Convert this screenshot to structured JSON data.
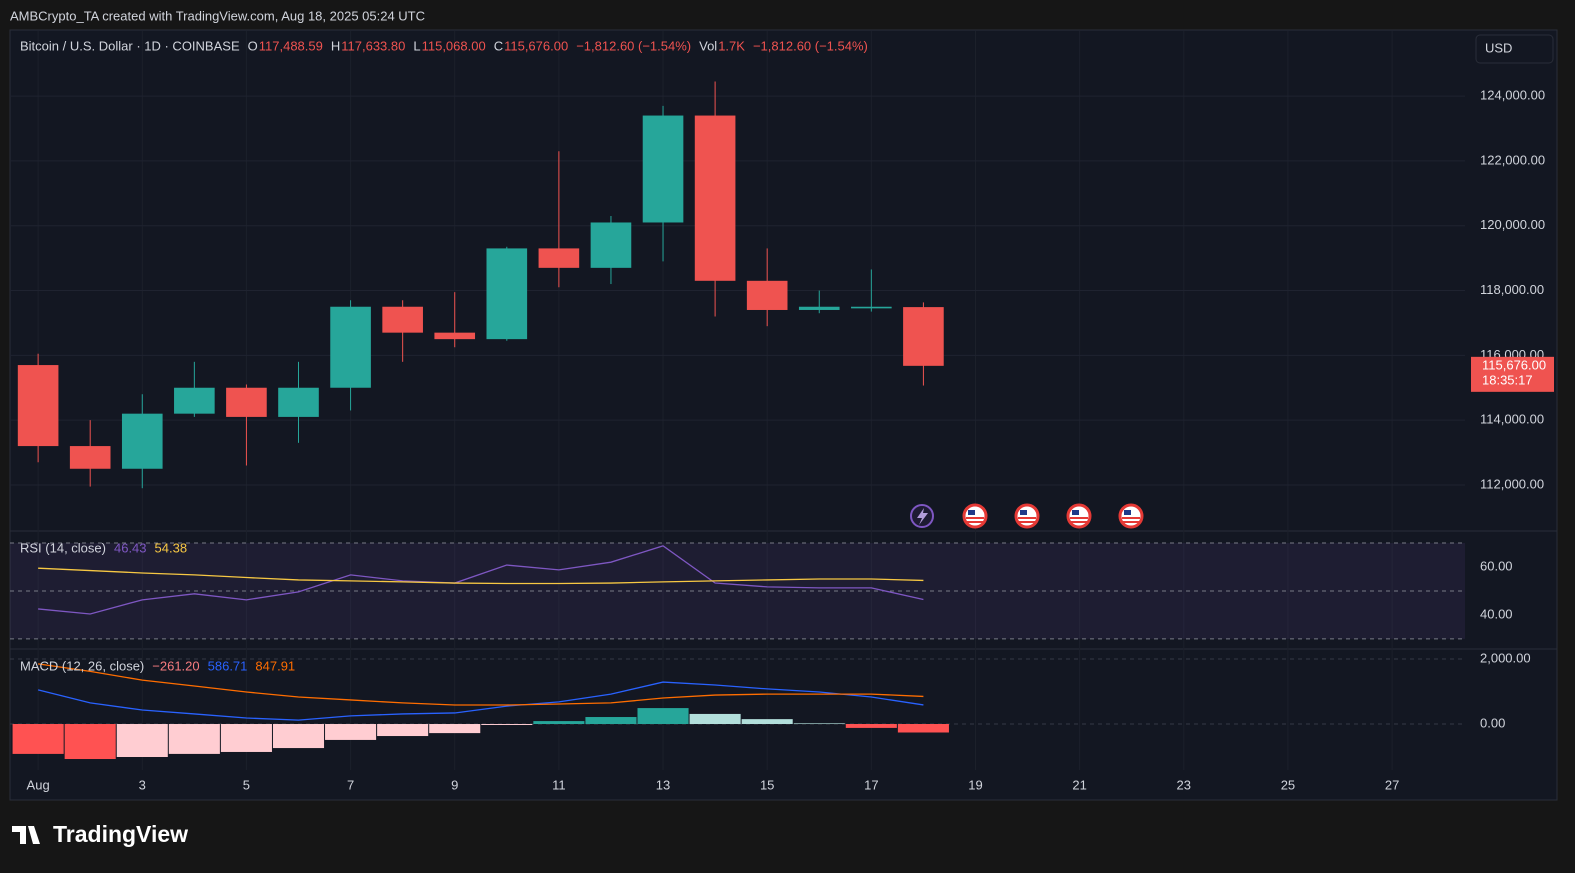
{
  "header": {
    "text": "AMBCrypto_TA created with TradingView.com, Aug 18, 2025 05:24 UTC"
  },
  "footer": {
    "brand": "TradingView"
  },
  "chart_data": [
    {
      "type": "candlestick",
      "symbol": "Bitcoin / U.S. Dollar · 1D · COINBASE",
      "legend": [
        {
          "key": "O",
          "value": "117,488.59"
        },
        {
          "key": "H",
          "value": "117,633.80"
        },
        {
          "key": "L",
          "value": "115,068.00"
        },
        {
          "key": "C",
          "value": "115,676.00"
        },
        {
          "value": "−1,812.60 (−1.54%)"
        },
        {
          "key": "Vol",
          "value": "1.7K"
        },
        {
          "value": "−1,812.60 (−1.54%)"
        }
      ],
      "legend_value_color": "#ef5350",
      "currency": "USD",
      "last_price_label": "115,676.00",
      "countdown": "18:35:17",
      "up_color": "#26a69a",
      "down_color": "#ef5350",
      "x": [
        1,
        2,
        3,
        4,
        5,
        6,
        7,
        8,
        9,
        10,
        11,
        12,
        13,
        14,
        15,
        16,
        17,
        18
      ],
      "open": [
        115700,
        113200,
        112500,
        114200,
        115000,
        114100,
        115000,
        117500,
        116700,
        116500,
        119300,
        118700,
        120100,
        123400,
        118300,
        117400,
        117450,
        117488.59
      ],
      "high": [
        116050,
        114000,
        114800,
        115800,
        115100,
        115800,
        117700,
        117700,
        117950,
        119350,
        122300,
        120300,
        123700,
        124450,
        119300,
        118000,
        118650,
        117633.8
      ],
      "low": [
        112700,
        111950,
        111900,
        114100,
        112600,
        113300,
        114300,
        115800,
        116250,
        116450,
        118100,
        118200,
        118900,
        117200,
        116900,
        117300,
        117350,
        115068
      ],
      "close": [
        113200,
        112500,
        114200,
        115000,
        114100,
        115000,
        117500,
        116700,
        116500,
        119300,
        118700,
        120100,
        123400,
        118300,
        117400,
        117500,
        117500,
        115676
      ],
      "xlim": [
        0.46,
        28.4
      ],
      "xticks": [
        {
          "value": 1,
          "label": "Aug"
        },
        3,
        5,
        7,
        9,
        11,
        13,
        15,
        17,
        19,
        21,
        23,
        25,
        27
      ],
      "ylim": [
        110610,
        126040
      ],
      "yticks": [
        {
          "value": 112000,
          "label": "112,000.00"
        },
        {
          "value": 114000,
          "label": "114,000.00"
        },
        {
          "value": 116000,
          "label": "116,000.00"
        },
        {
          "value": 118000,
          "label": "118,000.00"
        },
        {
          "value": 120000,
          "label": "120,000.00"
        },
        {
          "value": 122000,
          "label": "122,000.00"
        },
        {
          "value": 124000,
          "label": "124,000.00"
        }
      ],
      "grid": true
    },
    {
      "type": "line",
      "title": "RSI (14, close)",
      "legend": [
        {
          "text": "46.43",
          "color": "#7e57c2"
        },
        {
          "text": "54.38",
          "color": "#f7c843"
        }
      ],
      "x": [
        1,
        2,
        3,
        4,
        5,
        6,
        7,
        8,
        9,
        10,
        11,
        12,
        13,
        14,
        15,
        16,
        17,
        18
      ],
      "series": [
        {
          "color": "#7e57c2",
          "values": [
            42.5,
            40.4,
            46.3,
            48.8,
            46.3,
            49.6,
            56.7,
            54.2,
            53.3,
            60.8,
            58.8,
            62,
            68.8,
            53.3,
            51.7,
            51.3,
            51.3,
            46.43
          ]
        },
        {
          "color": "#f7c843",
          "values": [
            59.5,
            58.5,
            57.5,
            56.7,
            55.6,
            54.6,
            54.2,
            53.8,
            53.3,
            53.1,
            53.1,
            53.3,
            53.8,
            54.2,
            54.6,
            55,
            55,
            54.38
          ]
        }
      ],
      "band": [
        30,
        70
      ],
      "midline": 50,
      "xlim": [
        0.46,
        28.4
      ],
      "ylim": [
        25.8,
        75
      ],
      "yticks": [
        {
          "value": 40,
          "label": "40.00"
        },
        {
          "value": 60,
          "label": "60.00"
        }
      ],
      "grid": false
    },
    {
      "type": "macd",
      "title": "MACD (12, 26, close)",
      "legend": [
        {
          "text": "−261.20",
          "color": "#f77c80"
        },
        {
          "text": "586.71",
          "color": "#2962ff"
        },
        {
          "text": "847.91",
          "color": "#ff6d00"
        }
      ],
      "x": [
        1,
        2,
        3,
        4,
        5,
        6,
        7,
        8,
        9,
        10,
        11,
        12,
        13,
        14,
        15,
        16,
        17,
        18
      ],
      "histogram": {
        "values": [
          -920,
          -1077,
          -1015,
          -920,
          -860,
          -740,
          -490,
          -370,
          -280,
          -30,
          90,
          215,
          490,
          310,
          150,
          20,
          -120,
          -261.2
        ],
        "colors": [
          "#ff5252",
          "#ff5252",
          "#ffcdd2",
          "#ffcdd2",
          "#ffcdd2",
          "#ffcdd2",
          "#ffcdd2",
          "#ffcdd2",
          "#ffcdd2",
          "#ffcdd2",
          "#26a69a",
          "#26a69a",
          "#26a69a",
          "#b2dfdb",
          "#b2dfdb",
          "#b2dfdb",
          "#ff5252",
          "#ff5252"
        ]
      },
      "series": [
        {
          "color": "#2962ff",
          "values": [
            1050,
            650,
            430,
            310,
            185,
            120,
            250,
            310,
            340,
            550,
            680,
            920,
            1290,
            1200,
            1080,
            985,
            830,
            586.71
          ]
        },
        {
          "color": "#ff6d00",
          "values": [
            1850,
            1620,
            1350,
            1170,
            985,
            830,
            740,
            650,
            585,
            585,
            615,
            650,
            800,
            890,
            920,
            920,
            920,
            847.91
          ]
        }
      ],
      "xlim": [
        0.46,
        28.4
      ],
      "ylim": [
        -1415,
        2277
      ],
      "yticks": [
        {
          "value": 0,
          "label": "0.00"
        },
        {
          "value": 2000,
          "label": "2,000.00"
        }
      ],
      "grid": true
    }
  ]
}
